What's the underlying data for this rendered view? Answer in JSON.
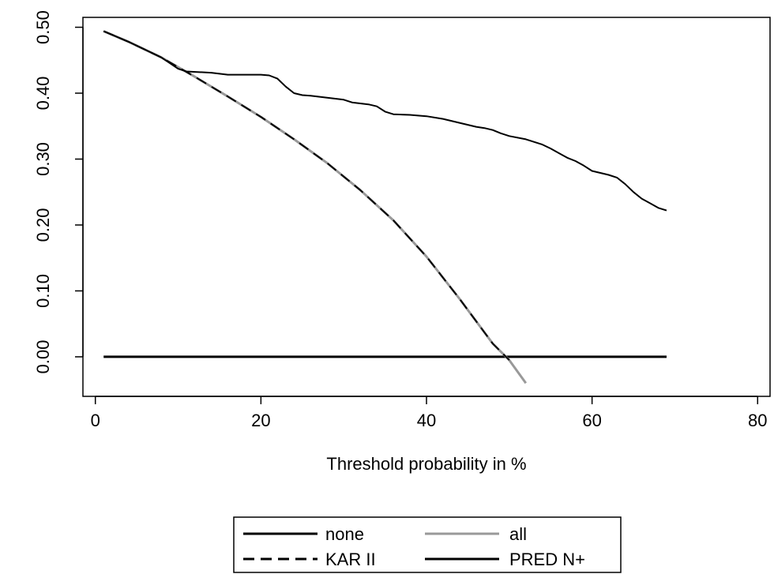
{
  "chart_data": {
    "type": "line",
    "xlabel": "Threshold probability in %",
    "ylabel": "",
    "xlim": [
      -1.5,
      81.5
    ],
    "ylim": [
      -0.06,
      0.515
    ],
    "x_ticks": [
      0,
      20,
      40,
      60,
      80
    ],
    "x_tick_labels": [
      "0",
      "20",
      "40",
      "60",
      "80"
    ],
    "y_ticks": [
      0.0,
      0.1,
      0.2,
      0.3,
      0.4,
      0.5
    ],
    "y_tick_labels": [
      "0.00",
      "0.10",
      "0.20",
      "0.30",
      "0.40",
      "0.50"
    ],
    "grid": false,
    "legend_placement": "bottom",
    "legend_columns": 2,
    "series": [
      {
        "name": "none",
        "color": "#000000",
        "dash": "solid",
        "width": 3,
        "x": [
          1,
          69
        ],
        "y": [
          0.0,
          0.0
        ]
      },
      {
        "name": "all",
        "color": "#999999",
        "dash": "solid",
        "width": 3,
        "x": [
          1,
          4,
          8,
          12,
          16,
          20,
          24,
          28,
          32,
          36,
          40,
          44,
          48,
          50,
          52
        ],
        "y": [
          0.494,
          0.478,
          0.454,
          0.425,
          0.395,
          0.364,
          0.33,
          0.294,
          0.253,
          0.207,
          0.152,
          0.088,
          0.02,
          -0.005,
          -0.04
        ]
      },
      {
        "name": "KAR II",
        "color": "#000000",
        "dash": "dashed",
        "width": 2,
        "x": [
          1,
          4,
          8,
          12,
          16,
          20,
          24,
          28,
          32,
          36,
          40,
          44,
          48,
          50
        ],
        "y": [
          0.494,
          0.478,
          0.454,
          0.425,
          0.395,
          0.364,
          0.33,
          0.294,
          0.253,
          0.207,
          0.152,
          0.088,
          0.02,
          -0.005
        ]
      },
      {
        "name": "PRED N+",
        "color": "#000000",
        "dash": "solid",
        "width": 2,
        "x": [
          1,
          4,
          8,
          10,
          11,
          14,
          16,
          18,
          20,
          21,
          22,
          23,
          24,
          25,
          26,
          28,
          30,
          31,
          33,
          34,
          35,
          36,
          38,
          40,
          42,
          44,
          46,
          47,
          48,
          49,
          50,
          52,
          54,
          55,
          56,
          57,
          58,
          59,
          60,
          61,
          62,
          63,
          64,
          65,
          66,
          67,
          68,
          69
        ],
        "y": [
          0.494,
          0.478,
          0.454,
          0.437,
          0.433,
          0.431,
          0.428,
          0.428,
          0.428,
          0.427,
          0.422,
          0.41,
          0.4,
          0.397,
          0.396,
          0.393,
          0.39,
          0.386,
          0.383,
          0.38,
          0.372,
          0.368,
          0.367,
          0.365,
          0.361,
          0.355,
          0.349,
          0.347,
          0.344,
          0.339,
          0.335,
          0.33,
          0.322,
          0.316,
          0.309,
          0.302,
          0.297,
          0.29,
          0.282,
          0.279,
          0.276,
          0.272,
          0.262,
          0.25,
          0.24,
          0.233,
          0.226,
          0.222
        ]
      }
    ],
    "legend": [
      {
        "label": "none",
        "color": "#000000",
        "dash": "solid"
      },
      {
        "label": "all",
        "color": "#999999",
        "dash": "solid"
      },
      {
        "label": "KAR II",
        "color": "#000000",
        "dash": "dashed"
      },
      {
        "label": "PRED N+",
        "color": "#000000",
        "dash": "solid"
      }
    ]
  }
}
